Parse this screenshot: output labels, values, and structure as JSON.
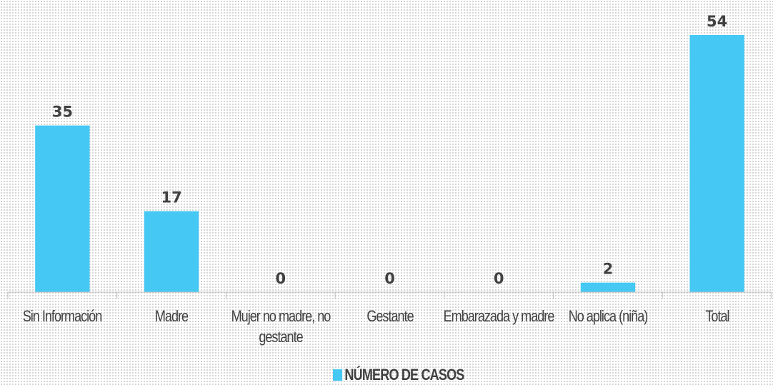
{
  "chart_data": {
    "type": "bar",
    "categories": [
      "Sin Información",
      "Madre",
      "Mujer no madre, no gestante",
      "Gestante",
      "Embarazada y madre",
      "No aplica (niña)",
      "Total"
    ],
    "series": [
      {
        "name": "NÚMERO DE CASOS",
        "color": "#45c9f4",
        "values": [
          35,
          17,
          0,
          0,
          0,
          2,
          54
        ]
      }
    ],
    "ylim": [
      0,
      60
    ]
  }
}
